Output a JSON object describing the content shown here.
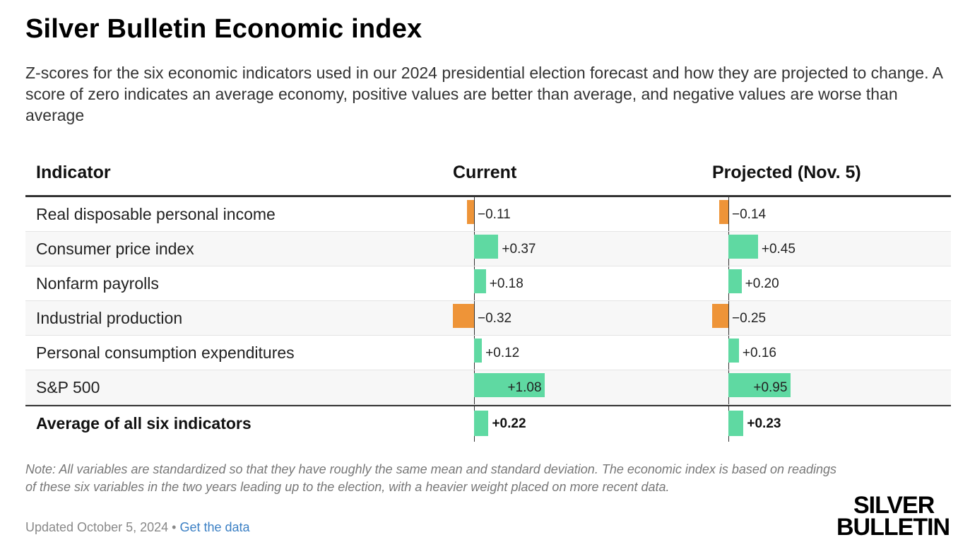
{
  "title": "Silver Bulletin Economic index",
  "subtitle": "Z-scores for the six economic indicators used in our 2024 presidential election forecast and how they are projected to change. A score of zero indicates an average economy, positive values are better than average, and negative values are worse than average",
  "columns": {
    "indicator": "Indicator",
    "current": "Current",
    "projected": "Projected (Nov. 5)"
  },
  "colors": {
    "positive": "#5fd9a2",
    "negative": "#ee9438"
  },
  "chart_data": {
    "type": "table",
    "rows": [
      {
        "label": "Real disposable personal income",
        "current": -0.11,
        "projected": -0.14,
        "current_label": "−0.11",
        "projected_label": "−0.14"
      },
      {
        "label": "Consumer price index",
        "current": 0.37,
        "projected": 0.45,
        "current_label": "+0.37",
        "projected_label": "+0.45"
      },
      {
        "label": "Nonfarm payrolls",
        "current": 0.18,
        "projected": 0.2,
        "current_label": "+0.18",
        "projected_label": "+0.20"
      },
      {
        "label": "Industrial production",
        "current": -0.32,
        "projected": -0.25,
        "current_label": "−0.32",
        "projected_label": "−0.25"
      },
      {
        "label": "Personal consumption expenditures",
        "current": 0.12,
        "projected": 0.16,
        "current_label": "+0.12",
        "projected_label": "+0.16"
      },
      {
        "label": "S&P 500",
        "current": 1.08,
        "projected": 0.95,
        "current_label": "+1.08",
        "projected_label": "+0.95"
      }
    ],
    "average": {
      "label": "Average of all six indicators",
      "current": 0.22,
      "projected": 0.23,
      "current_label": "+0.22",
      "projected_label": "+0.23"
    }
  },
  "note": "Note: All variables are standardized so that they have roughly the same mean and standard deviation. The economic index is based on readings of these six variables in the two years leading up to the election, with a heavier weight placed on more recent data.",
  "updated": "Updated October 5, 2024",
  "separator": "•",
  "get_data_link": "Get the data",
  "logo": {
    "line1": "SILVER",
    "line2": "BULLETIN"
  }
}
